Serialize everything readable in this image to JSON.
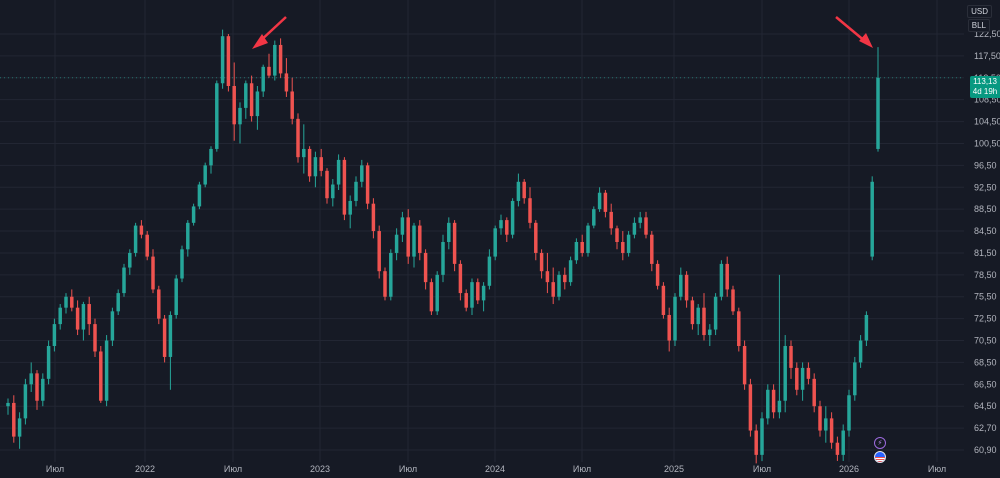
{
  "header": {
    "currency": "USD",
    "symbol_short": "BLL"
  },
  "current_price": {
    "value": "113,13",
    "countdown": "4d 19h"
  },
  "icons": {
    "lightning": "lightning-icon",
    "flag": "us-flag-icon"
  },
  "colors": {
    "background": "#161a25",
    "up": "#26a69a",
    "down": "#ef5350",
    "grid": "#222633",
    "arrow": "#f23645",
    "price_tag": "#089981"
  },
  "chart_data": {
    "type": "candlestick",
    "title": "",
    "xlabel": "",
    "ylabel": "",
    "y_ticks": [
      "122,50",
      "117,50",
      "112,50",
      "108,50",
      "104,50",
      "100,50",
      "96,50",
      "92,50",
      "88,50",
      "84,50",
      "81,50",
      "78,50",
      "75,50",
      "72,50",
      "70,50",
      "68,50",
      "66,50",
      "64,50",
      "62,70",
      "60,90"
    ],
    "x_ticks": [
      "Июл",
      "2022",
      "Июл",
      "2023",
      "Июл",
      "2024",
      "Июл",
      "2025",
      "Июл",
      "2026",
      "Июл"
    ],
    "ylim": [
      59.5,
      124
    ],
    "candles": [
      [
        64.5,
        65.2,
        63.8,
        64.8
      ],
      [
        64.8,
        65.5,
        61.5,
        62.0
      ],
      [
        62.0,
        64.0,
        61.0,
        63.5
      ],
      [
        63.5,
        67.0,
        63.0,
        66.5
      ],
      [
        66.5,
        68.5,
        65.8,
        67.5
      ],
      [
        67.5,
        67.8,
        64.2,
        65.0
      ],
      [
        65.0,
        67.5,
        64.5,
        67.0
      ],
      [
        67.0,
        70.5,
        66.5,
        70.0
      ],
      [
        70.0,
        72.5,
        69.5,
        72.0
      ],
      [
        72.0,
        74.5,
        71.5,
        74.0
      ],
      [
        74.0,
        76.0,
        73.2,
        75.5
      ],
      [
        75.5,
        76.5,
        73.5,
        74.0
      ],
      [
        74.0,
        75.0,
        71.0,
        71.5
      ],
      [
        71.5,
        74.8,
        70.5,
        74.5
      ],
      [
        74.5,
        75.5,
        71.0,
        72.0
      ],
      [
        72.0,
        72.5,
        69.0,
        69.5
      ],
      [
        69.5,
        70.0,
        64.8,
        65.0
      ],
      [
        65.0,
        71.0,
        64.5,
        70.5
      ],
      [
        70.5,
        74.0,
        70.0,
        73.5
      ],
      [
        73.5,
        76.5,
        73.0,
        76.0
      ],
      [
        76.0,
        80.0,
        75.5,
        79.5
      ],
      [
        79.5,
        82.0,
        78.5,
        81.5
      ],
      [
        81.5,
        86.0,
        81.0,
        85.5
      ],
      [
        85.5,
        86.5,
        83.5,
        84.0
      ],
      [
        84.0,
        84.5,
        80.5,
        81.0
      ],
      [
        81.0,
        82.0,
        76.0,
        76.5
      ],
      [
        76.5,
        77.0,
        72.0,
        72.5
      ],
      [
        72.5,
        73.0,
        68.5,
        69.0
      ],
      [
        69.0,
        73.5,
        66.0,
        73.0
      ],
      [
        73.0,
        78.5,
        72.5,
        78.0
      ],
      [
        78.0,
        82.5,
        77.5,
        82.0
      ],
      [
        82.0,
        86.5,
        81.0,
        86.0
      ],
      [
        86.0,
        89.5,
        85.5,
        89.0
      ],
      [
        89.0,
        93.5,
        88.5,
        93.0
      ],
      [
        93.0,
        97.0,
        92.5,
        96.5
      ],
      [
        96.5,
        100.0,
        95.0,
        99.5
      ],
      [
        99.5,
        112.0,
        99.0,
        111.5
      ],
      [
        111.5,
        123.5,
        110.5,
        122.0
      ],
      [
        122.0,
        122.5,
        110.0,
        111.0
      ],
      [
        111.0,
        116.0,
        101.0,
        104.0
      ],
      [
        104.0,
        108.0,
        100.5,
        107.0
      ],
      [
        107.0,
        112.0,
        105.0,
        111.5
      ],
      [
        111.5,
        113.0,
        104.5,
        105.5
      ],
      [
        105.5,
        111.0,
        103.0,
        110.0
      ],
      [
        110.0,
        115.5,
        109.0,
        115.0
      ],
      [
        115.0,
        118.0,
        112.5,
        113.0
      ],
      [
        113.0,
        121.0,
        112.0,
        120.0
      ],
      [
        120.0,
        121.5,
        112.5,
        113.5
      ],
      [
        113.5,
        117.0,
        109.0,
        110.0
      ],
      [
        110.0,
        112.5,
        104.0,
        105.0
      ],
      [
        105.0,
        106.0,
        97.0,
        98.0
      ],
      [
        98.0,
        104.0,
        95.0,
        99.5
      ],
      [
        99.5,
        100.0,
        93.5,
        94.5
      ],
      [
        94.5,
        99.0,
        92.5,
        98.0
      ],
      [
        98.0,
        99.5,
        94.5,
        95.5
      ],
      [
        95.5,
        96.0,
        89.5,
        90.5
      ],
      [
        90.5,
        94.0,
        89.0,
        93.0
      ],
      [
        93.0,
        98.5,
        92.0,
        97.5
      ],
      [
        97.5,
        98.0,
        86.5,
        87.5
      ],
      [
        87.5,
        91.0,
        85.0,
        90.0
      ],
      [
        90.0,
        94.5,
        89.0,
        93.5
      ],
      [
        93.5,
        97.5,
        92.5,
        96.5
      ],
      [
        96.5,
        97.0,
        88.5,
        89.5
      ],
      [
        89.5,
        90.5,
        83.5,
        84.5
      ],
      [
        84.5,
        85.5,
        78.0,
        79.0
      ],
      [
        79.0,
        79.5,
        75.0,
        75.5
      ],
      [
        75.5,
        82.0,
        75.0,
        81.5
      ],
      [
        81.5,
        85.0,
        80.5,
        84.0
      ],
      [
        84.0,
        88.0,
        83.0,
        87.0
      ],
      [
        87.0,
        88.5,
        80.0,
        81.0
      ],
      [
        81.0,
        86.0,
        79.5,
        85.5
      ],
      [
        85.5,
        86.5,
        80.5,
        81.5
      ],
      [
        81.5,
        82.0,
        76.5,
        77.5
      ],
      [
        77.5,
        78.0,
        73.0,
        73.5
      ],
      [
        73.5,
        79.0,
        73.0,
        78.5
      ],
      [
        78.5,
        84.0,
        77.5,
        83.0
      ],
      [
        83.0,
        87.0,
        82.0,
        86.0
      ],
      [
        86.0,
        86.5,
        79.0,
        80.0
      ],
      [
        80.0,
        80.5,
        75.0,
        76.0
      ],
      [
        76.0,
        76.5,
        73.5,
        74.0
      ],
      [
        74.0,
        78.0,
        73.0,
        77.5
      ],
      [
        77.5,
        78.0,
        74.5,
        75.0
      ],
      [
        75.0,
        77.5,
        73.5,
        77.0
      ],
      [
        77.0,
        82.0,
        76.5,
        81.0
      ],
      [
        81.0,
        85.5,
        80.5,
        85.0
      ],
      [
        85.0,
        87.5,
        84.0,
        86.5
      ],
      [
        86.5,
        87.0,
        83.0,
        84.0
      ],
      [
        84.0,
        90.5,
        83.5,
        90.0
      ],
      [
        90.0,
        95.0,
        89.0,
        93.5
      ],
      [
        93.5,
        94.0,
        89.5,
        90.5
      ],
      [
        90.5,
        92.5,
        85.0,
        86.0
      ],
      [
        86.0,
        86.5,
        80.5,
        81.5
      ],
      [
        81.5,
        82.0,
        78.0,
        79.0
      ],
      [
        79.0,
        81.5,
        76.0,
        77.5
      ],
      [
        77.5,
        79.5,
        74.5,
        75.5
      ],
      [
        75.5,
        79.0,
        75.0,
        78.5
      ],
      [
        78.5,
        79.5,
        76.5,
        77.5
      ],
      [
        77.5,
        81.0,
        77.0,
        80.5
      ],
      [
        80.5,
        83.5,
        80.0,
        83.0
      ],
      [
        83.0,
        84.0,
        81.0,
        81.5
      ],
      [
        81.5,
        86.0,
        81.0,
        85.5
      ],
      [
        85.5,
        89.0,
        85.0,
        88.5
      ],
      [
        88.5,
        92.5,
        88.0,
        91.5
      ],
      [
        91.5,
        92.0,
        87.0,
        88.0
      ],
      [
        88.0,
        89.5,
        84.0,
        85.0
      ],
      [
        85.0,
        85.5,
        82.0,
        83.0
      ],
      [
        83.0,
        84.5,
        80.5,
        81.5
      ],
      [
        81.5,
        84.5,
        81.0,
        84.0
      ],
      [
        84.0,
        87.0,
        83.5,
        86.0
      ],
      [
        86.0,
        88.0,
        85.0,
        87.0
      ],
      [
        87.0,
        88.0,
        83.5,
        84.0
      ],
      [
        84.0,
        84.5,
        79.0,
        80.0
      ],
      [
        80.0,
        80.5,
        76.5,
        77.0
      ],
      [
        77.0,
        77.5,
        72.5,
        73.0
      ],
      [
        73.0,
        74.0,
        69.5,
        70.5
      ],
      [
        70.5,
        76.0,
        70.0,
        75.5
      ],
      [
        75.5,
        79.5,
        75.0,
        78.5
      ],
      [
        78.5,
        79.0,
        74.0,
        75.0
      ],
      [
        75.0,
        75.5,
        71.5,
        72.0
      ],
      [
        72.0,
        74.5,
        71.0,
        74.0
      ],
      [
        74.0,
        76.0,
        70.5,
        71.0
      ],
      [
        71.0,
        72.0,
        70.0,
        71.5
      ],
      [
        71.5,
        76.0,
        71.0,
        75.5
      ],
      [
        75.5,
        80.5,
        75.0,
        80.0
      ],
      [
        80.0,
        81.0,
        75.5,
        76.5
      ],
      [
        76.5,
        77.0,
        73.0,
        73.5
      ],
      [
        73.5,
        74.0,
        69.5,
        70.0
      ],
      [
        70.0,
        70.5,
        66.0,
        66.5
      ],
      [
        66.5,
        67.0,
        62.0,
        62.5
      ],
      [
        62.5,
        63.0,
        59.8,
        60.5
      ],
      [
        60.5,
        64.0,
        60.0,
        63.5
      ],
      [
        63.5,
        66.5,
        63.0,
        66.0
      ],
      [
        66.0,
        66.5,
        63.5,
        64.0
      ],
      [
        64.0,
        78.5,
        63.5,
        65.0
      ],
      [
        65.0,
        71.0,
        64.0,
        70.0
      ],
      [
        70.0,
        70.5,
        67.0,
        68.0
      ],
      [
        68.0,
        68.5,
        65.5,
        66.0
      ],
      [
        66.0,
        68.5,
        65.0,
        68.0
      ],
      [
        68.0,
        68.5,
        66.5,
        67.0
      ],
      [
        67.0,
        67.5,
        64.0,
        64.5
      ],
      [
        64.5,
        65.0,
        62.0,
        62.5
      ],
      [
        62.5,
        64.5,
        61.5,
        63.5
      ],
      [
        63.5,
        64.0,
        61.0,
        61.5
      ],
      [
        61.5,
        62.0,
        60.0,
        60.5
      ],
      [
        60.5,
        63.0,
        60.0,
        62.5
      ],
      [
        62.5,
        66.0,
        62.0,
        65.5
      ],
      [
        65.5,
        69.0,
        65.0,
        68.5
      ],
      [
        68.5,
        71.0,
        68.0,
        70.5
      ],
      [
        70.5,
        73.5,
        70.0,
        73.0
      ],
      [
        81.0,
        94.5,
        80.5,
        93.5
      ],
      [
        99.5,
        119.5,
        99.0,
        112.5
      ]
    ]
  }
}
